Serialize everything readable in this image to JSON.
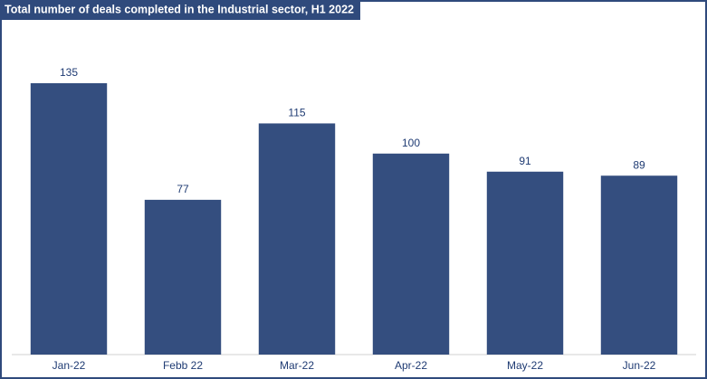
{
  "chart_data": {
    "type": "bar",
    "title": "Total number of deals completed in the Industrial sector, H1 2022",
    "categories": [
      "Jan-22",
      "Febb 22",
      "Mar-22",
      "Apr-22",
      "May-22",
      "Jun-22"
    ],
    "values": [
      135,
      77,
      115,
      100,
      91,
      89
    ],
    "color": "#344e7f"
  }
}
